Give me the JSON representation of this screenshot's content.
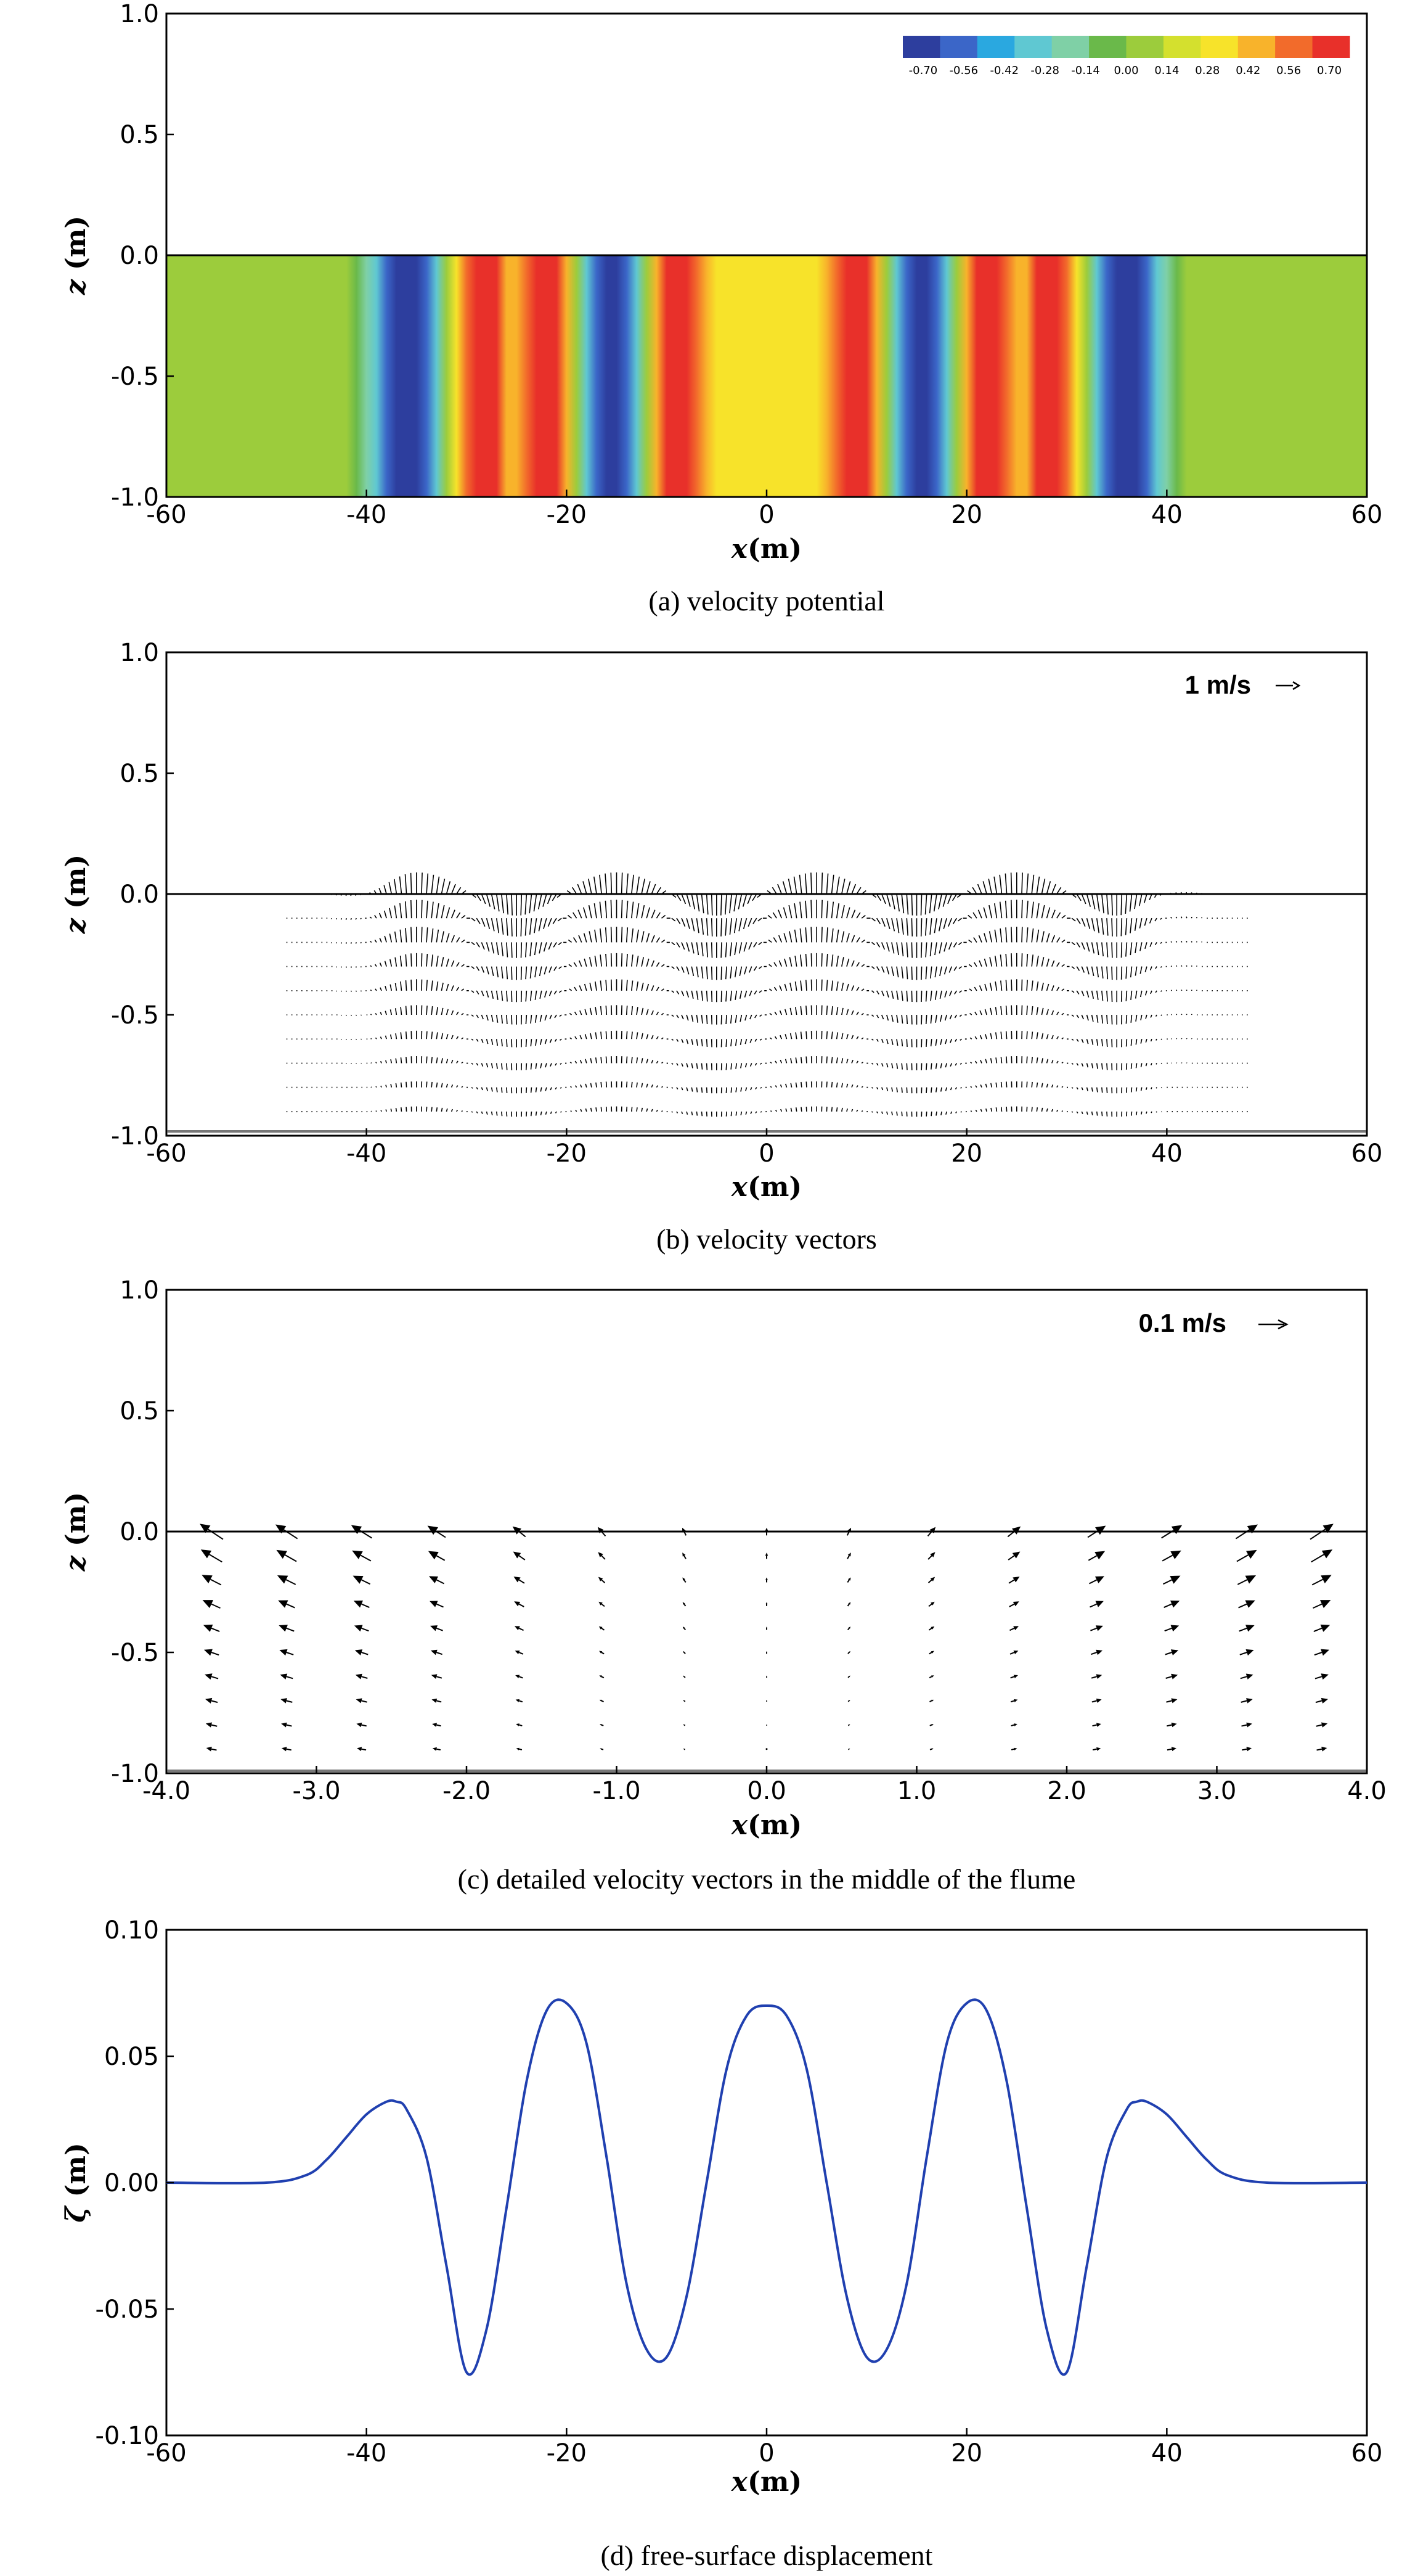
{
  "chart_data": [
    {
      "panel": "a",
      "type": "heatmap",
      "caption": "(a) velocity potential",
      "xlabel": "x",
      "xunit": "(m)",
      "ylabel": "z",
      "yunit": "(m)",
      "xlim": [
        -60,
        60
      ],
      "ylim": [
        -1.0,
        1.0
      ],
      "xticks": [
        "-60",
        "-40",
        "-20",
        "0",
        "20",
        "40",
        "60"
      ],
      "yticks": [
        "1.0",
        "0.5",
        "0.0",
        "-0.5",
        "-1.0"
      ],
      "colorbar": {
        "ticks": [
          "-0.70",
          "-0.56",
          "-0.42",
          "-0.28",
          "-0.14",
          "0.00",
          "0.14",
          "0.28",
          "0.42",
          "0.56",
          "0.70"
        ],
        "range": [
          -0.7,
          0.7
        ],
        "colors": [
          "#2d3e9e",
          "#3b66c8",
          "#2aa8e0",
          "#5fc8d2",
          "#7fd0a6",
          "#6ab94a",
          "#9ccc3c",
          "#d4e02e",
          "#f7e32a",
          "#f8b32b",
          "#f26b2b",
          "#e8302a"
        ]
      },
      "field": {
        "description_x_profile": "velocity potential constant in depth; varies with x",
        "x": [
          -60,
          -42,
          -41,
          -40,
          -39,
          -38,
          -37,
          -36,
          -35,
          -34,
          -33,
          -32,
          -31,
          -30,
          -29,
          -28,
          -27,
          -26,
          -25,
          -24,
          -23,
          -22,
          -21,
          -20,
          -19,
          -18,
          -17,
          -16,
          -15,
          -14,
          -13,
          -12,
          -11,
          -10,
          -9,
          -8,
          -7,
          -6,
          -5,
          -4,
          -3,
          -2,
          -1,
          0,
          1,
          2,
          3,
          4,
          5,
          6,
          7,
          8,
          9,
          10,
          11,
          12,
          13,
          14,
          15,
          16,
          17,
          18,
          19,
          20,
          21,
          22,
          23,
          24,
          25,
          26,
          27,
          28,
          29,
          30,
          31,
          32,
          33,
          34,
          35,
          36,
          37,
          38,
          39,
          40,
          41,
          42,
          60
        ],
        "phi": [
          0.0,
          0.0,
          -0.02,
          -0.12,
          -0.3,
          -0.5,
          -0.64,
          -0.7,
          -0.66,
          -0.5,
          -0.25,
          0.05,
          0.35,
          0.58,
          0.7,
          0.7,
          0.6,
          0.45,
          0.4,
          0.48,
          0.62,
          0.7,
          0.62,
          0.38,
          0.05,
          -0.3,
          -0.58,
          -0.7,
          -0.7,
          -0.58,
          -0.3,
          0.05,
          0.38,
          0.62,
          0.7,
          0.65,
          0.5,
          0.4,
          0.32,
          0.28,
          0.26,
          0.26,
          0.27,
          0.28,
          0.27,
          0.26,
          0.26,
          0.28,
          0.32,
          0.4,
          0.5,
          0.65,
          0.7,
          0.62,
          0.38,
          0.05,
          -0.3,
          -0.58,
          -0.7,
          -0.7,
          -0.58,
          -0.3,
          0.05,
          0.38,
          0.62,
          0.7,
          0.62,
          0.48,
          0.4,
          0.45,
          0.6,
          0.7,
          0.7,
          0.58,
          0.35,
          0.05,
          -0.25,
          -0.5,
          -0.66,
          -0.7,
          -0.64,
          -0.5,
          -0.3,
          -0.12,
          -0.02,
          0.0,
          0.0
        ]
      }
    },
    {
      "panel": "b",
      "type": "vector",
      "caption": "(b) velocity vectors",
      "xlabel": "x",
      "xunit": "(m)",
      "ylabel": "z",
      "yunit": "(m)",
      "xlim": [
        -60,
        60
      ],
      "ylim": [
        -1.0,
        1.0
      ],
      "xticks": [
        "-60",
        "-40",
        "-20",
        "0",
        "20",
        "40",
        "60"
      ],
      "yticks": [
        "1.0",
        "0.5",
        "0.0",
        "-0.5",
        "-1.0"
      ],
      "reference_vector": "1 m/s",
      "grid_dx": 0.5,
      "z_levels": [
        0.0,
        -0.1,
        -0.2,
        -0.3,
        -0.4,
        -0.5,
        -0.6,
        -0.7,
        -0.8,
        -0.9
      ],
      "x_extent": [
        -48,
        48
      ],
      "crests_x": [
        -25,
        -5,
        5,
        25
      ],
      "troughs_x": [
        -35,
        -15,
        15,
        35
      ],
      "peak_speed_m_s": 0.5
    },
    {
      "panel": "c",
      "type": "vector",
      "caption": "(c) detailed velocity vectors in the middle of the flume",
      "xlabel": "x",
      "xunit": "(m)",
      "ylabel": "z",
      "yunit": "(m)",
      "xlim": [
        -4.0,
        4.0
      ],
      "ylim": [
        -1.0,
        1.0
      ],
      "xticks": [
        "-4.0",
        "-3.0",
        "-2.0",
        "-1.0",
        "0.0",
        "1.0",
        "2.0",
        "3.0",
        "4.0"
      ],
      "yticks": [
        "1.0",
        "0.5",
        "0.0",
        "-0.5",
        "-1.0"
      ],
      "reference_vector": "0.1 m/s",
      "x_positions": [
        -3.7,
        -3.2,
        -2.7,
        -2.2,
        -1.65,
        -1.1,
        -0.55,
        0.0,
        0.55,
        1.1,
        1.65,
        2.2,
        2.7,
        3.2,
        3.7
      ],
      "u_surface": [
        -0.09,
        -0.085,
        -0.08,
        -0.07,
        -0.05,
        -0.03,
        -0.015,
        0.0,
        0.015,
        0.03,
        0.05,
        0.07,
        0.08,
        0.085,
        0.09
      ],
      "w_surface": [
        0.06,
        0.055,
        0.05,
        0.045,
        0.04,
        0.035,
        0.03,
        0.03,
        0.03,
        0.035,
        0.04,
        0.045,
        0.05,
        0.055,
        0.06
      ],
      "z_levels": [
        0.0,
        -0.1,
        -0.2,
        -0.3,
        -0.4,
        -0.5,
        -0.6,
        -0.7,
        -0.8,
        -0.9
      ]
    },
    {
      "panel": "d",
      "type": "line",
      "caption": "(d) free-surface displacement",
      "xlabel": "x",
      "xunit": "(m)",
      "ylabel": "ζ",
      "yunit": "(m)",
      "xlim": [
        -60,
        60
      ],
      "ylim": [
        -0.1,
        0.1
      ],
      "xticks": [
        "-60",
        "-40",
        "-20",
        "0",
        "20",
        "40",
        "60"
      ],
      "yticks": [
        "0.10",
        "0.05",
        "0.00",
        "-0.05",
        "-0.10"
      ],
      "line_color": "#2040b0",
      "x": [
        -60,
        -50,
        -46,
        -44,
        -42,
        -40,
        -38,
        -37,
        -36,
        -34,
        -32,
        -30,
        -28,
        -26,
        -24,
        -22,
        -20,
        -18,
        -16,
        -14,
        -12,
        -10,
        -8,
        -6,
        -4,
        -2,
        0,
        2,
        4,
        6,
        8,
        10,
        12,
        14,
        16,
        18,
        20,
        22,
        24,
        26,
        28,
        30,
        32,
        34,
        36,
        37,
        38,
        40,
        42,
        44,
        46,
        50,
        60
      ],
      "y": [
        0.0,
        0.0,
        0.003,
        0.009,
        0.018,
        0.027,
        0.032,
        0.032,
        0.029,
        0.01,
        -0.033,
        -0.075,
        -0.058,
        -0.01,
        0.04,
        0.068,
        0.071,
        0.055,
        0.01,
        -0.04,
        -0.066,
        -0.069,
        -0.045,
        0.0,
        0.045,
        0.066,
        0.07,
        0.066,
        0.045,
        0.0,
        -0.045,
        -0.069,
        -0.066,
        -0.04,
        0.01,
        0.055,
        0.071,
        0.068,
        0.04,
        -0.01,
        -0.058,
        -0.075,
        -0.033,
        0.01,
        0.029,
        0.032,
        0.032,
        0.027,
        0.018,
        0.009,
        0.003,
        0.0,
        0.0
      ]
    }
  ]
}
